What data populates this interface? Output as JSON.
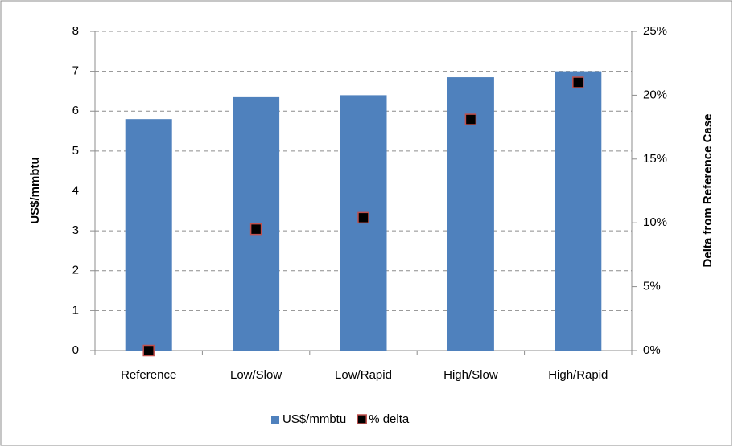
{
  "chart_data": {
    "type": "bar",
    "categories": [
      "Reference",
      "Low/Slow",
      "Low/Rapid",
      "High/Slow",
      "High/Rapid"
    ],
    "series": [
      {
        "name": "US$/mmbtu",
        "type": "bar",
        "color": "#4f81bd",
        "values": [
          5.8,
          6.35,
          6.4,
          6.85,
          7.0
        ]
      },
      {
        "name": "% delta",
        "type": "scatter",
        "axis": "y2",
        "color": "#000000",
        "edgecolor": "#c0504d",
        "values": [
          0,
          9.5,
          10.4,
          18.1,
          21.0
        ]
      }
    ],
    "ylabel": "US$/mmbtu",
    "y2label": "Delta from Reference Case",
    "ylim": [
      0,
      8
    ],
    "yticks": [
      0,
      1,
      2,
      3,
      4,
      5,
      6,
      7,
      8
    ],
    "y2lim": [
      0,
      25
    ],
    "y2ticks": [
      {
        "value": 0,
        "label": "0%"
      },
      {
        "value": 5,
        "label": "5%"
      },
      {
        "value": 10,
        "label": "10%"
      },
      {
        "value": 15,
        "label": "15%"
      },
      {
        "value": 20,
        "label": "20%"
      },
      {
        "value": 25,
        "label": "25%"
      }
    ],
    "grid": true,
    "legend": "bottom"
  }
}
